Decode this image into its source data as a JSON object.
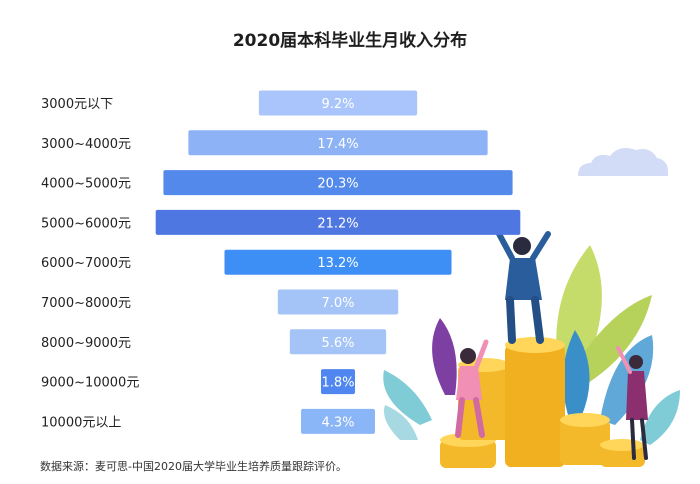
{
  "chart_data": {
    "type": "bar",
    "orientation": "horizontal",
    "title": "2020届本科毕业生月收入分布",
    "categories": [
      "3000元以下",
      "3000~4000元",
      "4000~5000元",
      "5000~6000元",
      "6000~7000元",
      "7000~8000元",
      "8000~9000元",
      "9000~10000元",
      "10000元以上"
    ],
    "values": [
      9.2,
      17.4,
      20.3,
      21.2,
      13.2,
      7.0,
      5.6,
      1.8,
      4.3
    ],
    "value_labels": [
      "9.2%",
      "17.4%",
      "20.3%",
      "21.2%",
      "13.2%",
      "7.0%",
      "5.6%",
      "1.8%",
      "4.3%"
    ],
    "unit": "%",
    "bar_colors": [
      "#a9c5fb",
      "#8eb2f6",
      "#5289ea",
      "#4f77e2",
      "#3e8ff5",
      "#a4c4f8",
      "#a4c4f8",
      "#4f86ef",
      "#8ab6f8"
    ],
    "bar_alignment": "centered",
    "grid": false,
    "legend": "none"
  },
  "footer": {
    "source": "数据来源：麦可思-中国2020届大学毕业生培养质量跟踪评价。"
  }
}
